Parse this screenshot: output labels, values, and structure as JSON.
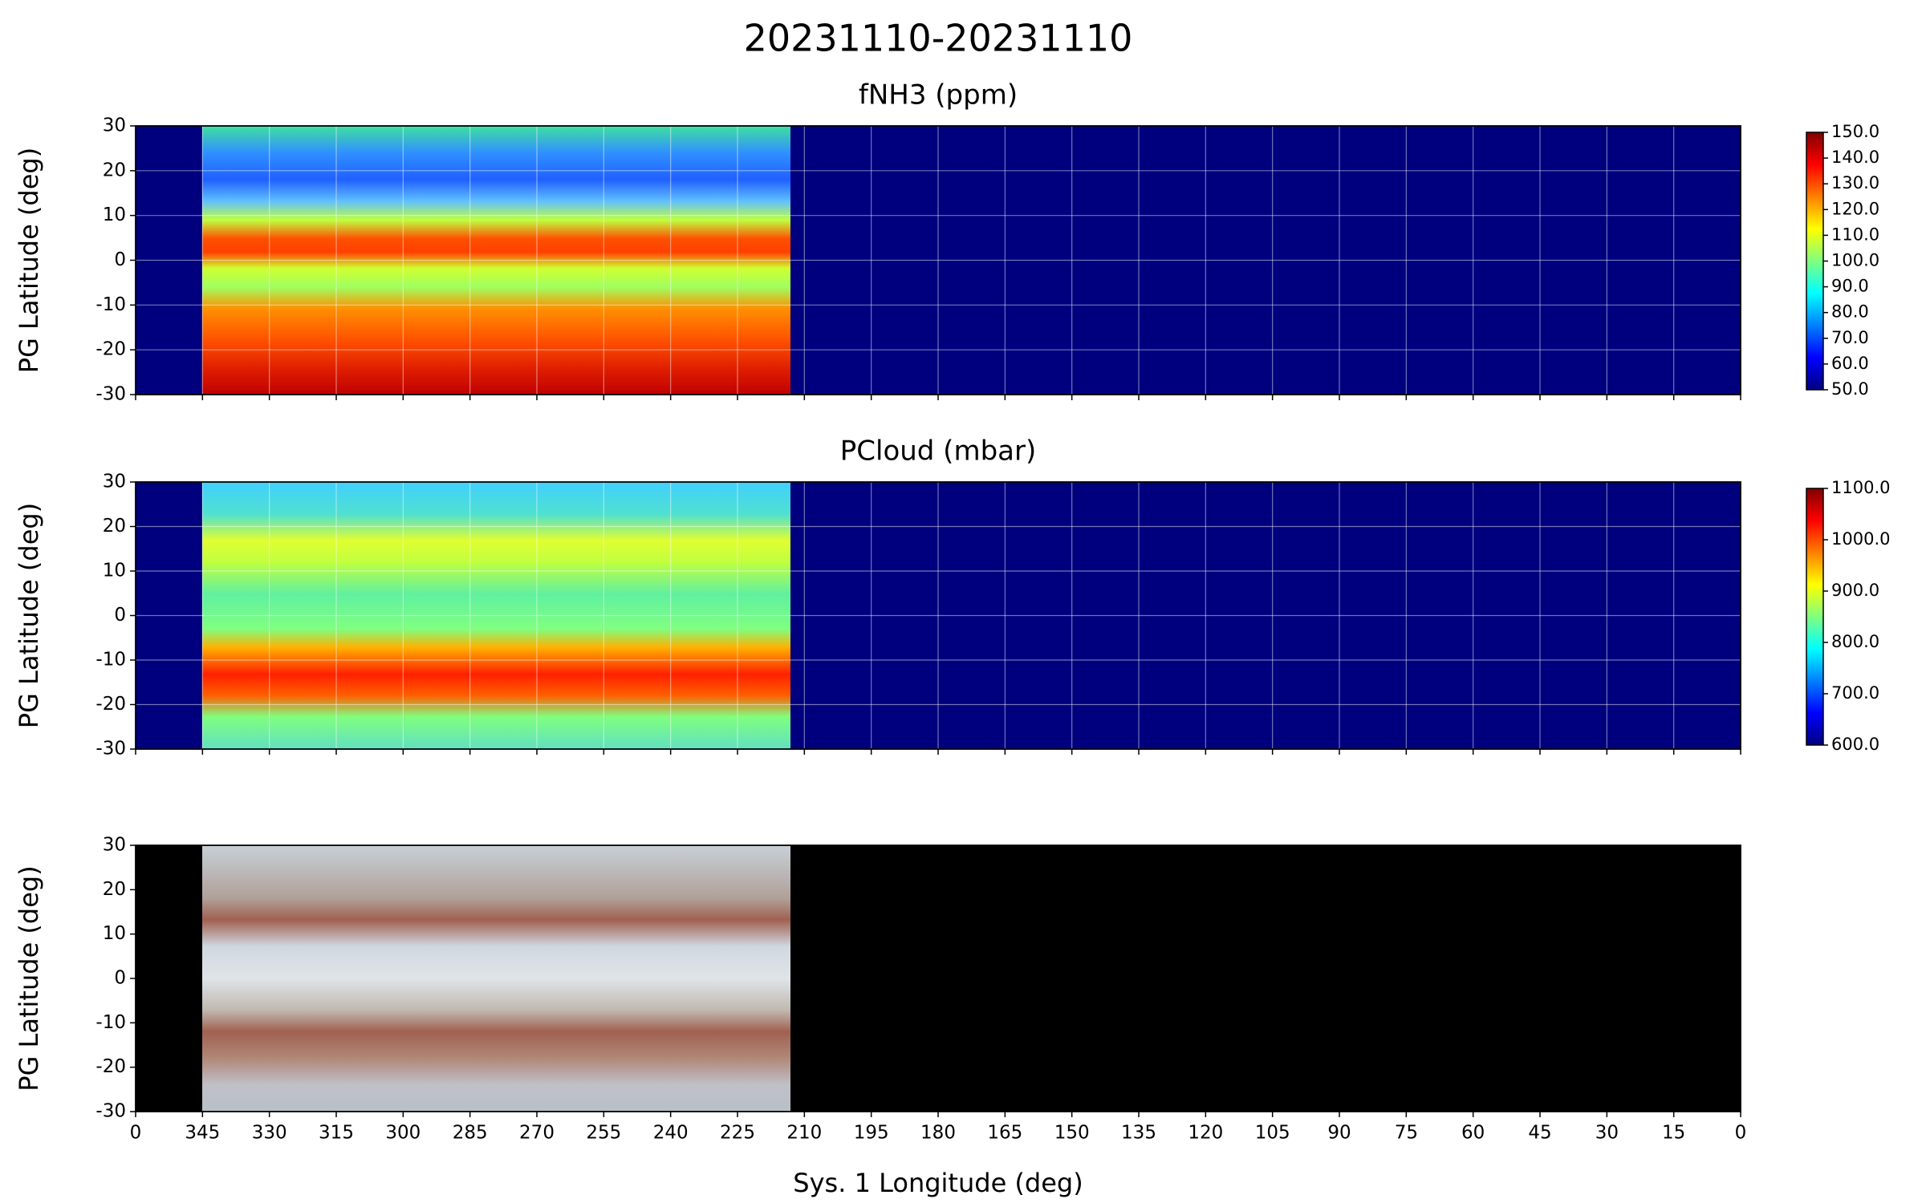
{
  "title": "20231110-20231110",
  "chart_data": [
    {
      "type": "heatmap",
      "title": "fNH3 (ppm)",
      "ylabel": "PG Latitude (deg)",
      "xlim": [
        360,
        0
      ],
      "xticks": [
        {
          "value": 360,
          "label": "0"
        },
        345,
        330,
        315,
        300,
        285,
        270,
        255,
        240,
        225,
        210,
        195,
        180,
        165,
        150,
        135,
        120,
        105,
        90,
        75,
        60,
        45,
        30,
        15,
        0
      ],
      "ylim": [
        -30,
        30
      ],
      "yticks": [
        -30,
        -20,
        -10,
        0,
        10,
        20,
        30
      ],
      "grid": true,
      "colormap": "jet",
      "colorbar": {
        "lim": [
          50,
          150
        ],
        "ticks": [
          {
            "value": 50,
            "label": "50.0"
          },
          {
            "value": 60,
            "label": "60.0"
          },
          {
            "value": 70,
            "label": "70.0"
          },
          {
            "value": 80,
            "label": "80.0"
          },
          {
            "value": 90,
            "label": "90.0"
          },
          {
            "value": 100,
            "label": "100.0"
          },
          {
            "value": 110,
            "label": "110.0"
          },
          {
            "value": 120,
            "label": "120.0"
          },
          {
            "value": 130,
            "label": "130.0"
          },
          {
            "value": 140,
            "label": "140.0"
          },
          {
            "value": 150,
            "label": "150.0"
          }
        ]
      }
    },
    {
      "type": "heatmap",
      "title": "PCloud (mbar)",
      "ylabel": "PG Latitude (deg)",
      "xlim": [
        360,
        0
      ],
      "xticks": [
        {
          "value": 360,
          "label": "0"
        },
        345,
        330,
        315,
        300,
        285,
        270,
        255,
        240,
        225,
        210,
        195,
        180,
        165,
        150,
        135,
        120,
        105,
        90,
        75,
        60,
        45,
        30,
        15,
        0
      ],
      "ylim": [
        -30,
        30
      ],
      "yticks": [
        -30,
        -20,
        -10,
        0,
        10,
        20,
        30
      ],
      "grid": true,
      "colormap": "jet",
      "colorbar": {
        "lim": [
          600,
          1100
        ],
        "ticks": [
          {
            "value": 600,
            "label": "600.0"
          },
          {
            "value": 700,
            "label": "700.0"
          },
          {
            "value": 800,
            "label": "800.0"
          },
          {
            "value": 900,
            "label": "900.0"
          },
          {
            "value": 1000,
            "label": "1000.0"
          },
          {
            "value": 1100,
            "label": "1100.0"
          }
        ]
      }
    },
    {
      "type": "image",
      "ylabel": "PG Latitude (deg)",
      "xlabel": "Sys. 1 Longitude (deg)",
      "xlim": [
        360,
        0
      ],
      "xticks": [
        {
          "value": 360,
          "label": "0"
        },
        345,
        330,
        315,
        300,
        285,
        270,
        255,
        240,
        225,
        210,
        195,
        180,
        165,
        150,
        135,
        120,
        105,
        90,
        75,
        60,
        45,
        30,
        15,
        0
      ],
      "ylim": [
        -30,
        30
      ],
      "yticks": [
        -30,
        -20,
        -10,
        0,
        10,
        20,
        30
      ],
      "grid": false
    }
  ]
}
